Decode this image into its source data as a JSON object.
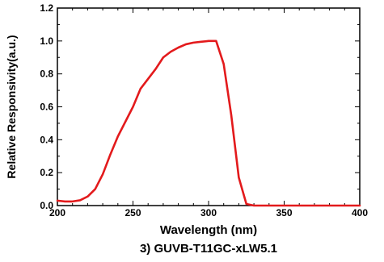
{
  "chart_data": {
    "type": "line",
    "title": "3) GUVB-T11GC-xLW5.1",
    "xlabel": "Wavelength (nm)",
    "ylabel": "Relative Responsivity(a.u.)",
    "xlim": [
      200,
      400
    ],
    "ylim": [
      0.0,
      1.2
    ],
    "grid": false,
    "x_ticks": [
      "200",
      "250",
      "300",
      "350",
      "400"
    ],
    "y_ticks": [
      "0.0",
      "0.2",
      "0.4",
      "0.6",
      "0.8",
      "1.0",
      "1.2"
    ],
    "series": [
      {
        "color": "#e31a1c",
        "x": [
          200,
          205,
          210,
          215,
          220,
          225,
          230,
          235,
          240,
          245,
          250,
          255,
          260,
          265,
          270,
          275,
          280,
          285,
          290,
          295,
          300,
          305,
          310,
          315,
          320,
          325,
          330,
          335,
          340,
          350,
          360,
          370,
          380,
          390,
          400
        ],
        "y": [
          0.03,
          0.025,
          0.025,
          0.032,
          0.055,
          0.1,
          0.19,
          0.31,
          0.42,
          0.51,
          0.6,
          0.71,
          0.77,
          0.83,
          0.9,
          0.935,
          0.96,
          0.98,
          0.99,
          0.995,
          1.0,
          1.0,
          0.86,
          0.55,
          0.17,
          0.01,
          0.0,
          0.0,
          0.0,
          0.0,
          0.0,
          0.0,
          0.0,
          0.0,
          0.0
        ]
      }
    ]
  }
}
